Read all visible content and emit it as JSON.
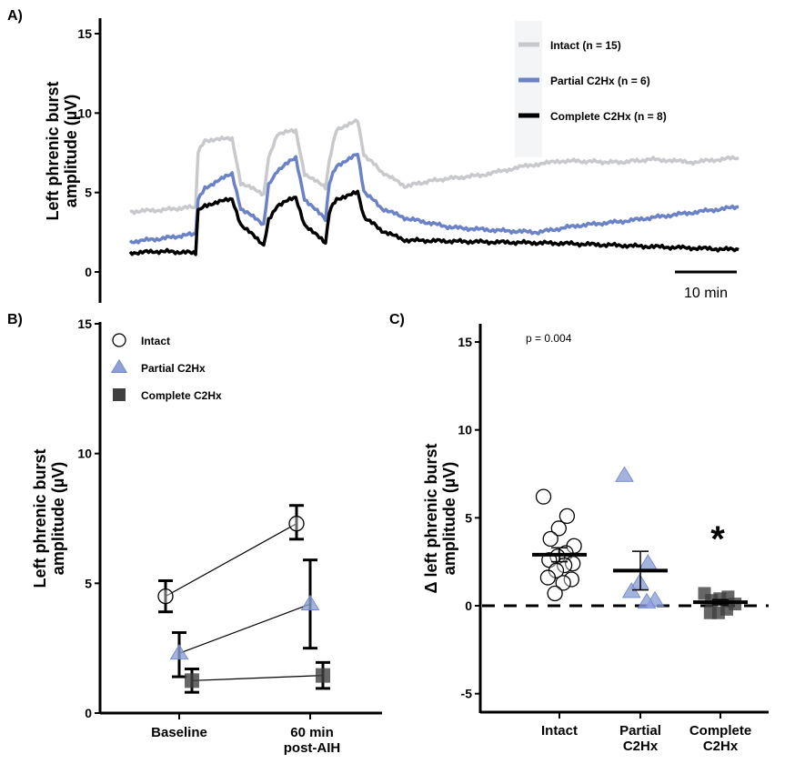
{
  "colors": {
    "intact": "#c8c9cc",
    "partial": "#6b82c7",
    "partial_marker": "#8d9fd6",
    "complete": "#000000",
    "complete_marker": "#404040"
  },
  "chart_data": [
    {
      "panel": "A)",
      "type": "line",
      "ylabel": [
        "Left phrenic burst",
        "amplitude (µV)"
      ],
      "ylim": [
        -2,
        16
      ],
      "yticks": [
        "0",
        "5",
        "10",
        "15"
      ],
      "scale_bar": {
        "label": "10 min",
        "minutes": 10
      },
      "legend_placement": "top-right",
      "x_unit": "min",
      "series": [
        {
          "name": "Intact (n = 15)",
          "key": "intact",
          "x": [
            0,
            5,
            10.6,
            11,
            12.1,
            16.5,
            17.9,
            21.6,
            22.4,
            23.8,
            26.8,
            28.2,
            31.6,
            32.2,
            33.4,
            36.8,
            37.8,
            40.7,
            44.4,
            49.6,
            56.9,
            64.3,
            70.1,
            79,
            84.9,
            90.7,
            98.4
          ],
          "values": [
            3.8,
            3.9,
            4.1,
            7.6,
            8.3,
            8.4,
            5.6,
            4.9,
            7.2,
            8.7,
            8.9,
            6.2,
            5.3,
            7.0,
            9.0,
            9.5,
            7.4,
            6.3,
            5.4,
            5.8,
            6.1,
            6.7,
            7.0,
            6.9,
            7.1,
            6.9,
            7.2
          ]
        },
        {
          "name": "Partial C2Hx (n = 6)",
          "key": "partial",
          "x": [
            0,
            5,
            10.6,
            11,
            12.1,
            16.5,
            17.9,
            21.6,
            22.4,
            23.8,
            26.8,
            28.2,
            31.6,
            32.2,
            33.4,
            36.8,
            37.8,
            40.7,
            44.4,
            52,
            60,
            66,
            72,
            80,
            88,
            98.4
          ],
          "values": [
            1.9,
            2.1,
            2.4,
            4.6,
            5.3,
            6.2,
            4.0,
            3.0,
            5.5,
            6.4,
            7.2,
            4.6,
            3.3,
            5.6,
            6.7,
            7.4,
            5.1,
            4.0,
            3.4,
            2.8,
            2.6,
            2.5,
            2.9,
            3.2,
            3.6,
            4.1
          ]
        },
        {
          "name": "Complete C2Hx (n = 8)",
          "key": "complete",
          "x": [
            0,
            5,
            10.6,
            11,
            12.1,
            16.5,
            17.9,
            21.6,
            22.4,
            23.8,
            26.8,
            28.2,
            31.6,
            32.2,
            33.4,
            36.8,
            37.8,
            40.7,
            44.4,
            56,
            70,
            84,
            98.4
          ],
          "values": [
            1.2,
            1.3,
            1.2,
            3.9,
            4.2,
            4.6,
            3.0,
            1.7,
            3.3,
            4.2,
            4.7,
            3.0,
            1.8,
            3.8,
            4.6,
            5.0,
            3.5,
            2.6,
            2.0,
            1.9,
            1.8,
            1.6,
            1.4
          ]
        }
      ]
    },
    {
      "panel": "B)",
      "type": "line",
      "ylabel": [
        "Left phrenic burst",
        "amplitude (µV)"
      ],
      "ylim": [
        0,
        15
      ],
      "yticks": [
        "0",
        "5",
        "10",
        "15"
      ],
      "categories": [
        [
          "Baseline"
        ],
        [
          "60 min",
          "post-AIH"
        ]
      ],
      "legend_placement": "top-left",
      "series": [
        {
          "name": "Intact",
          "key": "intact",
          "marker": "circle-open",
          "values": [
            4.5,
            7.3
          ],
          "err_low": [
            3.9,
            6.7
          ],
          "err_high": [
            5.1,
            8.0
          ]
        },
        {
          "name": "Partial C2Hx",
          "key": "partial",
          "marker": "triangle",
          "values": [
            2.3,
            4.2
          ],
          "err_low": [
            1.4,
            2.5
          ],
          "err_high": [
            3.1,
            5.9
          ]
        },
        {
          "name": "Complete C2Hx",
          "key": "complete",
          "marker": "square",
          "values": [
            1.25,
            1.45
          ],
          "err_low": [
            0.8,
            0.95
          ],
          "err_high": [
            1.7,
            1.95
          ]
        }
      ]
    },
    {
      "panel": "C)",
      "type": "scatter",
      "ylabel": [
        "Δ left phrenic burst",
        "amplitude (µV)"
      ],
      "ylim": [
        -6,
        16
      ],
      "yticks": [
        "-5",
        "0",
        "5",
        "10",
        "15"
      ],
      "categories": [
        [
          "Intact"
        ],
        [
          "Partial",
          "C2Hx"
        ],
        [
          "Complete",
          "C2Hx"
        ]
      ],
      "annotation": "p = 0.004",
      "significance": "*",
      "reference_line": 0,
      "groups": [
        {
          "key": "intact",
          "marker": "circle-open",
          "values": [
            6.2,
            5.1,
            4.4,
            3.8,
            3.4,
            3.0,
            2.8,
            2.6,
            2.4,
            2.3,
            2.0,
            1.6,
            1.5,
            1.3,
            0.7
          ],
          "mean": 2.9,
          "sem": 0.4
        },
        {
          "key": "partial",
          "marker": "triangle",
          "values": [
            7.4,
            2.4,
            1.3,
            0.8,
            0.3,
            0.2
          ],
          "mean": 2.0,
          "sem": 1.1
        },
        {
          "key": "complete",
          "marker": "square",
          "values": [
            0.7,
            0.5,
            0.4,
            0.3,
            0.1,
            -0.2,
            -0.4,
            -0.4
          ],
          "mean": 0.2,
          "sem": 0.15
        }
      ]
    }
  ]
}
